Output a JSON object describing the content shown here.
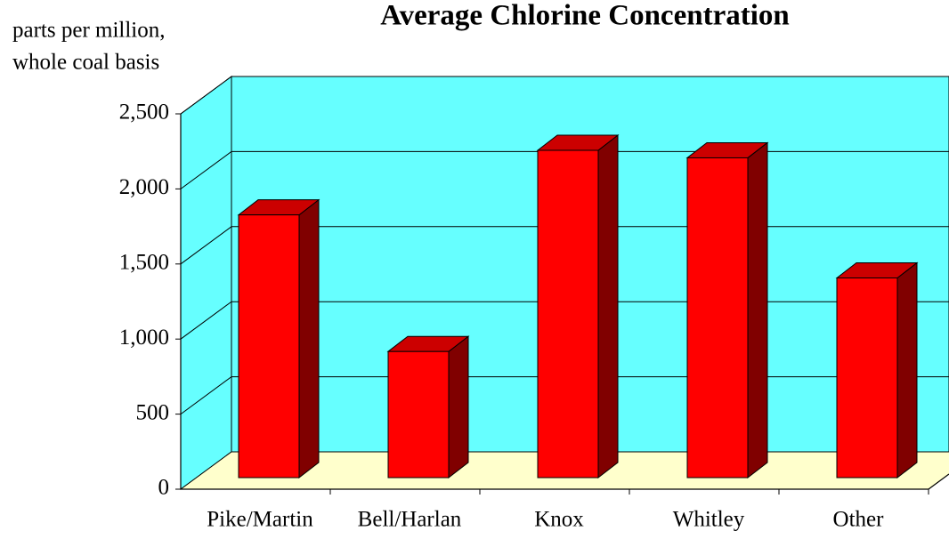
{
  "chart_data": {
    "type": "bar3d",
    "title": "Average Chlorine Concentration",
    "y_label": [
      "parts per million,",
      "whole coal basis"
    ],
    "categories": [
      "Pike/Martin",
      "Bell/Harlan",
      "Knox",
      "Whitley",
      "Other"
    ],
    "values": [
      1750,
      840,
      2180,
      2130,
      1330
    ],
    "color": "#ff0000",
    "wall_color": "#66ffff",
    "floor_color": "#ffffcc",
    "ylim": [
      0,
      2500
    ],
    "yticks": [
      0,
      500,
      {
        "value": 1000,
        "label": "1,000"
      },
      {
        "value": 1500,
        "label": "1,500"
      },
      {
        "value": 2000,
        "label": "2,000"
      },
      {
        "value": 2500,
        "label": "2,500"
      }
    ],
    "grid": true
  }
}
